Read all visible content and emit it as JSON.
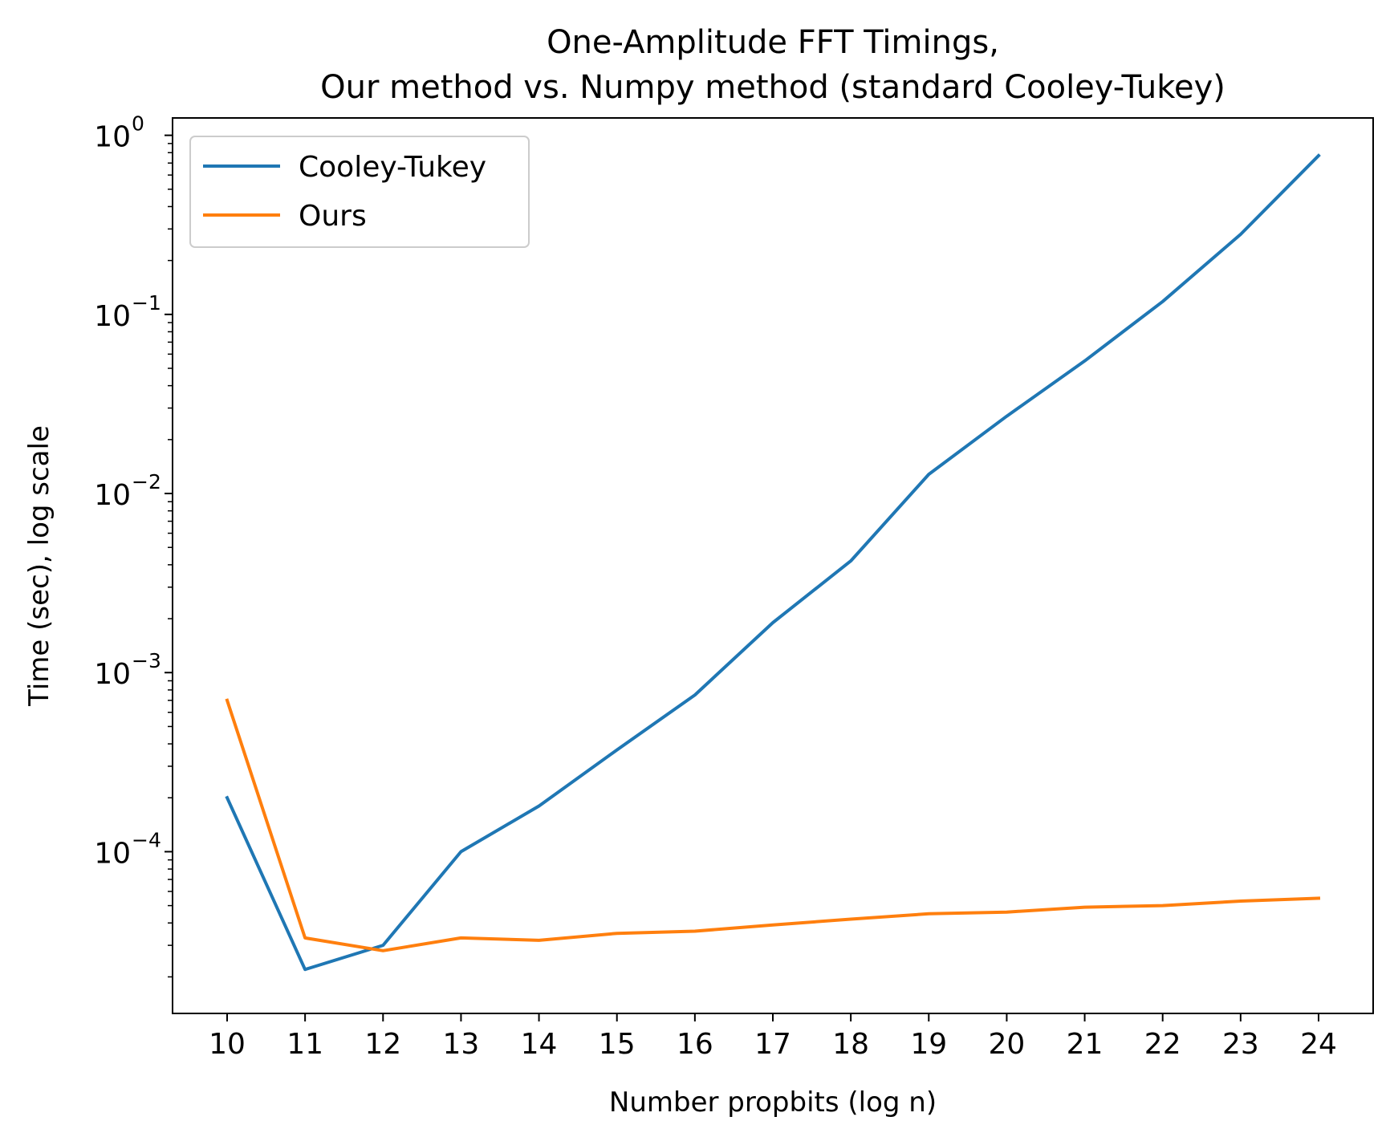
{
  "chart_data": {
    "type": "line",
    "title_lines": [
      "One-Amplitude FFT Timings,",
      "Our method vs. Numpy method (standard Cooley-Tukey)"
    ],
    "xlabel": "Number propbits (log n)",
    "ylabel": "Time (sec), log scale",
    "yscale": "log",
    "x": [
      10,
      11,
      12,
      13,
      14,
      15,
      16,
      17,
      18,
      19,
      20,
      21,
      22,
      23,
      24
    ],
    "xlim": [
      9.3,
      24.7
    ],
    "ylim": [
      1.25e-05,
      1.25
    ],
    "y_ticks": [
      {
        "value": 1,
        "base": "10",
        "exp": "0"
      },
      {
        "value": 0.1,
        "base": "10",
        "exp": "−1"
      },
      {
        "value": 0.01,
        "base": "10",
        "exp": "−2"
      },
      {
        "value": 0.001,
        "base": "10",
        "exp": "−3"
      },
      {
        "value": 0.0001,
        "base": "10",
        "exp": "−4"
      }
    ],
    "grid": false,
    "legend_position": "upper-left",
    "series": [
      {
        "name": "Cooley-Tukey",
        "color": "#1f77b4",
        "values": [
          0.0002,
          2.2e-05,
          3e-05,
          0.0001,
          0.00018,
          0.00037,
          0.00075,
          0.0019,
          0.0042,
          0.0128,
          0.027,
          0.055,
          0.118,
          0.28,
          0.77
        ]
      },
      {
        "name": "Ours",
        "color": "#ff7f0e",
        "values": [
          0.0007,
          3.3e-05,
          2.8e-05,
          3.3e-05,
          3.2e-05,
          3.5e-05,
          3.6e-05,
          3.9e-05,
          4.2e-05,
          4.5e-05,
          4.6e-05,
          4.9e-05,
          5e-05,
          5.3e-05,
          5.5e-05
        ]
      }
    ]
  }
}
